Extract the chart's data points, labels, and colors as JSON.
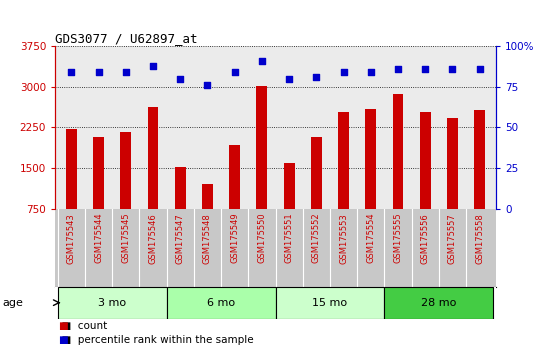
{
  "title": "GDS3077 / U62897_at",
  "samples": [
    "GSM175543",
    "GSM175544",
    "GSM175545",
    "GSM175546",
    "GSM175547",
    "GSM175548",
    "GSM175549",
    "GSM175550",
    "GSM175551",
    "GSM175552",
    "GSM175553",
    "GSM175554",
    "GSM175555",
    "GSM175556",
    "GSM175557",
    "GSM175558"
  ],
  "counts": [
    2220,
    2070,
    2170,
    2620,
    1530,
    1210,
    1920,
    3010,
    1600,
    2080,
    2530,
    2590,
    2870,
    2530,
    2420,
    2580
  ],
  "percentiles": [
    84,
    84,
    84,
    88,
    80,
    76,
    84,
    91,
    80,
    81,
    84,
    84,
    86,
    86,
    86,
    86
  ],
  "bar_color": "#cc0000",
  "dot_color": "#0000cc",
  "ylim_left": [
    750,
    3750
  ],
  "ylim_right": [
    0,
    100
  ],
  "yticks_left": [
    750,
    1500,
    2250,
    3000,
    3750
  ],
  "yticks_right": [
    0,
    25,
    50,
    75,
    100
  ],
  "groups": [
    {
      "label": "3 mo",
      "start": 0,
      "end": 4,
      "color": "#ccffcc"
    },
    {
      "label": "6 mo",
      "start": 4,
      "end": 8,
      "color": "#aaffaa"
    },
    {
      "label": "15 mo",
      "start": 8,
      "end": 12,
      "color": "#ccffcc"
    },
    {
      "label": "28 mo",
      "start": 12,
      "end": 16,
      "color": "#44cc44"
    }
  ],
  "age_label": "age",
  "legend_count_label": "count",
  "legend_pct_label": "percentile rank within the sample",
  "grid_color": "#000000",
  "bg_plot": "#ebebeb",
  "bg_xtick": "#c8c8c8",
  "bar_width": 0.4,
  "left_spine_color": "#cc0000",
  "right_spine_color": "#0000cc"
}
